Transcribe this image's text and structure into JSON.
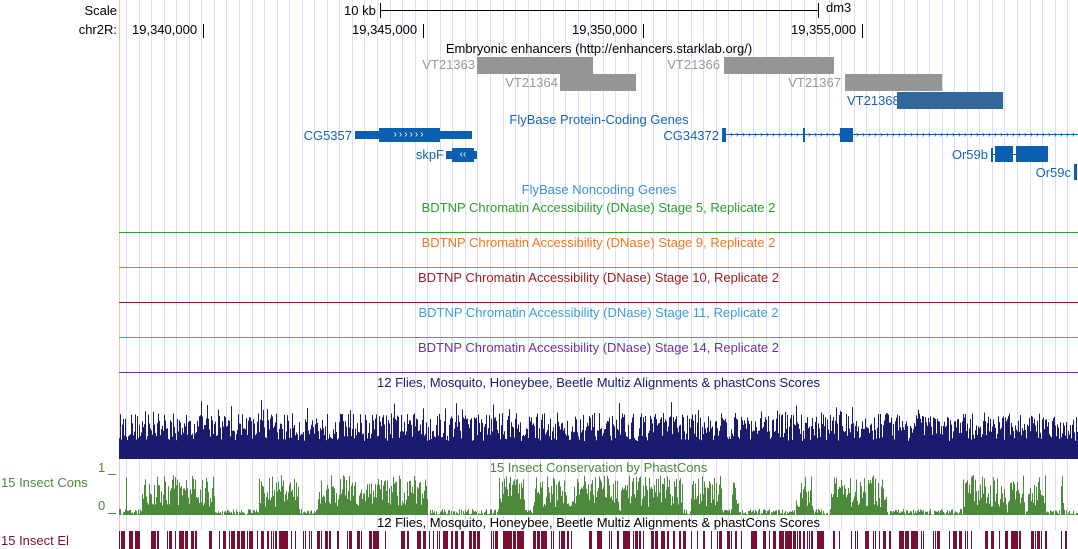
{
  "header": {
    "scale_label": "Scale",
    "scale_value": "10 kb",
    "assembly": "dm3",
    "chrom_label": "chr2R:",
    "ticks": [
      "19,340,000",
      "19,345,000",
      "19,350,000",
      "19,355,000"
    ]
  },
  "enhancers": {
    "title": "Embryonic enhancers (http://enhancers.starklab.org/)",
    "items": [
      "VT21363",
      "VT21364",
      "VT21366",
      "VT21367",
      "VT21368"
    ]
  },
  "protein_genes": {
    "title": "FlyBase Protein-Coding Genes",
    "items": [
      "CG5357",
      "skpF",
      "CG34372",
      "Or59b",
      "Or59c"
    ]
  },
  "noncoding": {
    "title": "FlyBase Noncoding Genes"
  },
  "dnase": [
    {
      "title": "BDTNP Chromatin Accessibility (DNase) Stage 5, Replicate 2",
      "color": "#2ca02c"
    },
    {
      "title": "BDTNP Chromatin Accessibility (DNase) Stage 9, Replicate 2",
      "color": "#f07820"
    },
    {
      "title": "BDTNP Chromatin Accessibility (DNase) Stage 10, Replicate 2",
      "color": "#9a1c1c"
    },
    {
      "title": "BDTNP Chromatin Accessibility (DNase) Stage 11, Replicate 2",
      "color": "#3aa0d8"
    },
    {
      "title": "BDTNP Chromatin Accessibility (DNase) Stage 14, Replicate 2",
      "color": "#7030a0"
    }
  ],
  "multiz": {
    "title": "12 Flies, Mosquito, Honeybee, Beetle Multiz Alignments & phastCons Scores",
    "color": "#1a1a6e"
  },
  "cons": {
    "title": "15 Insect Conservation by PhastCons",
    "side_label": "15 Insect Cons",
    "ymax": "1",
    "ymin": "0",
    "color": "#4a8a3a"
  },
  "elements": {
    "title": "12 Flies, Mosquito, Honeybee, Beetle Multiz Alignments & phastCons Scores",
    "side_label": "15 Insect El",
    "color": "#7a1030"
  }
}
